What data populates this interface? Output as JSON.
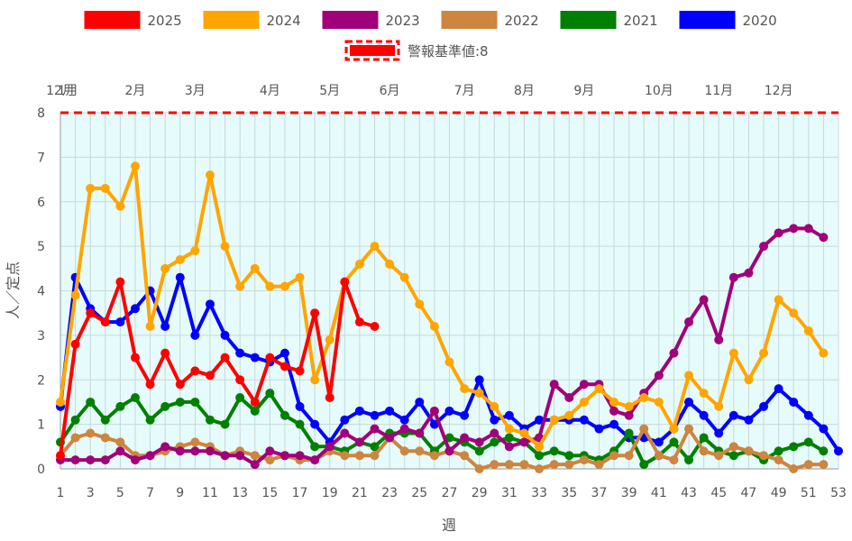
{
  "chart_data": {
    "type": "line",
    "xlabel": "週",
    "ylabel": "人／定点",
    "xlim": [
      1,
      53
    ],
    "ylim": [
      0,
      8
    ],
    "x_ticks": [
      1,
      3,
      5,
      7,
      9,
      11,
      13,
      15,
      17,
      19,
      21,
      23,
      25,
      27,
      29,
      31,
      33,
      35,
      37,
      39,
      41,
      43,
      45,
      47,
      49,
      51,
      53
    ],
    "y_ticks": [
      0,
      1,
      2,
      3,
      4,
      5,
      6,
      7,
      8
    ],
    "month_labels": [
      {
        "label": "12月",
        "week": 1
      },
      {
        "label": "1月",
        "week": 1.5
      },
      {
        "label": "2月",
        "week": 6
      },
      {
        "label": "3月",
        "week": 10
      },
      {
        "label": "4月",
        "week": 15
      },
      {
        "label": "5月",
        "week": 19
      },
      {
        "label": "6月",
        "week": 23
      },
      {
        "label": "7月",
        "week": 28
      },
      {
        "label": "8月",
        "week": 32
      },
      {
        "label": "9月",
        "week": 36
      },
      {
        "label": "10月",
        "week": 41
      },
      {
        "label": "11月",
        "week": 45
      },
      {
        "label": "12月",
        "week": 49
      }
    ],
    "threshold": {
      "name": "警報基準値:8",
      "value": 8,
      "color": "#ff0000"
    },
    "grid": true,
    "plot_background": "#e6fbfb",
    "legend_position": "top",
    "series": [
      {
        "name": "2025",
        "color": "#ff0000",
        "start_week": 1,
        "values": [
          0.3,
          2.8,
          3.5,
          3.3,
          4.2,
          2.5,
          1.9,
          2.6,
          1.9,
          2.2,
          2.1,
          2.5,
          2.0,
          1.5,
          2.5,
          2.3,
          2.2,
          3.5,
          1.6,
          4.2,
          3.3,
          3.2
        ]
      },
      {
        "name": "2024",
        "color": "#ffa500",
        "start_week": 1,
        "values": [
          1.5,
          3.9,
          6.3,
          6.3,
          5.9,
          6.8,
          3.2,
          4.5,
          4.7,
          4.9,
          6.6,
          5.0,
          4.1,
          4.5,
          4.1,
          4.1,
          4.3,
          2.0,
          2.9,
          4.2,
          4.6,
          5.0,
          4.6,
          4.3,
          3.7,
          3.2,
          2.4,
          1.8,
          1.7,
          1.4,
          0.9,
          0.8,
          0.5,
          1.1,
          1.2,
          1.5,
          1.8,
          1.5,
          1.4,
          1.6,
          1.5,
          0.9,
          2.1,
          1.7,
          1.4,
          2.6,
          2.0,
          2.6,
          3.8,
          3.5,
          3.1,
          2.6
        ]
      },
      {
        "name": "2023",
        "color": "#a0007a",
        "start_week": 1,
        "values": [
          0.2,
          0.2,
          0.2,
          0.2,
          0.4,
          0.2,
          0.3,
          0.5,
          0.4,
          0.4,
          0.4,
          0.3,
          0.3,
          0.1,
          0.4,
          0.3,
          0.3,
          0.2,
          0.5,
          0.8,
          0.6,
          0.9,
          0.7,
          0.9,
          0.8,
          1.3,
          0.4,
          0.7,
          0.6,
          0.8,
          0.5,
          0.6,
          0.7,
          1.9,
          1.6,
          1.9,
          1.9,
          1.3,
          1.2,
          1.7,
          2.1,
          2.6,
          3.3,
          3.8,
          2.9,
          4.3,
          4.4,
          5.0,
          5.3,
          5.4,
          5.4,
          5.2
        ]
      },
      {
        "name": "2022",
        "color": "#cd853f",
        "start_week": 1,
        "values": [
          0.3,
          0.7,
          0.8,
          0.7,
          0.6,
          0.3,
          0.3,
          0.4,
          0.5,
          0.6,
          0.5,
          0.3,
          0.4,
          0.3,
          0.2,
          0.3,
          0.2,
          0.2,
          0.4,
          0.3,
          0.3,
          0.3,
          0.7,
          0.4,
          0.4,
          0.3,
          0.4,
          0.3,
          0.0,
          0.1,
          0.1,
          0.1,
          0.0,
          0.1,
          0.1,
          0.2,
          0.1,
          0.3,
          0.3,
          0.9,
          0.3,
          0.2,
          0.9,
          0.4,
          0.3,
          0.5,
          0.4,
          0.3,
          0.2,
          0.0,
          0.1,
          0.1
        ]
      },
      {
        "name": "2021",
        "color": "#008000",
        "start_week": 1,
        "values": [
          0.6,
          1.1,
          1.5,
          1.1,
          1.4,
          1.6,
          1.1,
          1.4,
          1.5,
          1.5,
          1.1,
          1.0,
          1.6,
          1.3,
          1.7,
          1.2,
          1.0,
          0.5,
          0.5,
          0.4,
          0.6,
          0.5,
          0.8,
          0.8,
          0.8,
          0.4,
          0.7,
          0.6,
          0.4,
          0.6,
          0.7,
          0.6,
          0.3,
          0.4,
          0.3,
          0.3,
          0.2,
          0.4,
          0.8,
          0.1,
          0.3,
          0.6,
          0.2,
          0.7,
          0.4,
          0.3,
          0.4,
          0.2,
          0.4,
          0.5,
          0.6,
          0.4
        ]
      },
      {
        "name": "2020",
        "color": "#0000ff",
        "start_week": 1,
        "values": [
          1.4,
          4.3,
          3.6,
          3.3,
          3.3,
          3.6,
          4.0,
          3.2,
          4.3,
          3.0,
          3.7,
          3.0,
          2.6,
          2.5,
          2.4,
          2.6,
          1.4,
          1.0,
          0.6,
          1.1,
          1.3,
          1.2,
          1.3,
          1.1,
          1.5,
          1.0,
          1.3,
          1.2,
          2.0,
          1.1,
          1.2,
          0.9,
          1.1,
          1.1,
          1.1,
          1.1,
          0.9,
          1.0,
          0.7,
          0.7,
          0.6,
          0.9,
          1.5,
          1.2,
          0.8,
          1.2,
          1.1,
          1.4,
          1.8,
          1.5,
          1.2,
          0.9,
          0.4
        ]
      }
    ]
  }
}
